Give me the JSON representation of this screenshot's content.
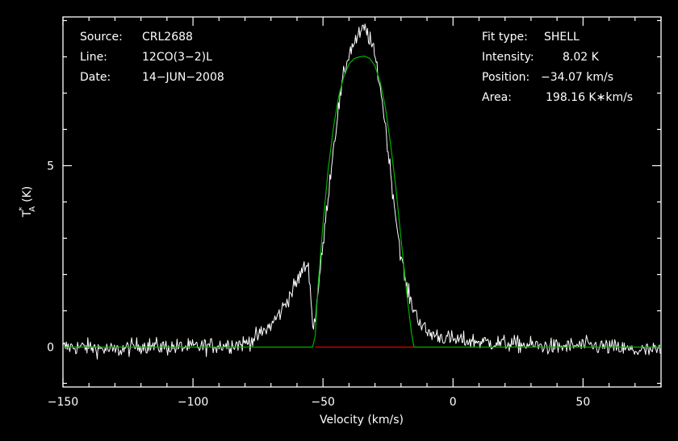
{
  "chart_data": {
    "type": "line",
    "xlabel": "Velocity (km/s)",
    "ylabel": "T",
    "ylabel_sub": "A",
    "ylabel_sup": "*",
    "ylabel_unit": "(K)",
    "xlim": [
      -150,
      80
    ],
    "ylim": [
      -1.1,
      9.1
    ],
    "x_ticks": [
      -150,
      -100,
      -50,
      0,
      50
    ],
    "y_ticks": [
      0,
      5
    ],
    "grid": false,
    "info_left": [
      {
        "key": "Source:",
        "value": "CRL2688"
      },
      {
        "key": "Line:",
        "value": "12CO(3−2)L"
      },
      {
        "key": "Date:",
        "value": "14−JUN−2008"
      }
    ],
    "info_right": [
      {
        "key": "Fit type:",
        "value": "SHELL"
      },
      {
        "key": "Intensity:",
        "value": "8.02 K"
      },
      {
        "key": "Position:",
        "value": "−34.07 km/s"
      },
      {
        "key": "Area:",
        "value": "198.16 K∗km/s"
      }
    ],
    "fit": {
      "type": "SHELL",
      "intensity_K": 8.02,
      "position_kms": -34.07,
      "area_Kkms": 198.16,
      "window_kms": [
        -53,
        -15
      ]
    },
    "series": [
      {
        "color": "#ffffff",
        "x": [
          -150,
          -140,
          -130,
          -120,
          -110,
          -100,
          -90,
          -80,
          -75,
          -70,
          -66,
          -63,
          -60,
          -58,
          -56,
          -55,
          -54,
          -53,
          -52,
          -50,
          -48,
          -46,
          -44,
          -42,
          -40,
          -38,
          -36,
          -34,
          -32,
          -30,
          -28,
          -26,
          -24,
          -22,
          -20,
          -18,
          -16,
          -14,
          -12,
          -10,
          -5,
          0,
          10,
          20,
          30,
          40,
          50,
          60,
          70,
          80
        ],
        "y": [
          0.0,
          0.0,
          -0.1,
          0.05,
          0.0,
          0.0,
          0.05,
          0.1,
          0.3,
          0.6,
          1.0,
          1.4,
          1.8,
          2.1,
          2.3,
          1.9,
          0.5,
          0.8,
          1.5,
          2.8,
          4.2,
          5.5,
          6.6,
          7.5,
          8.1,
          8.4,
          8.6,
          8.8,
          8.5,
          8.0,
          7.2,
          6.1,
          4.8,
          3.6,
          2.5,
          1.7,
          1.2,
          0.9,
          0.6,
          0.4,
          0.3,
          0.2,
          0.15,
          0.1,
          0.05,
          0.0,
          0.05,
          0.0,
          -0.1,
          -0.1
        ]
      },
      {
        "color": "#00b000",
        "x": [
          -150,
          -80,
          -54,
          -53,
          -52,
          -50,
          -48,
          -46,
          -44,
          -42,
          -40,
          -38,
          -36,
          -34,
          -32,
          -30,
          -28,
          -26,
          -24,
          -22,
          -20,
          -18,
          -16,
          -15,
          -14,
          0,
          80
        ],
        "y": [
          0,
          0,
          0,
          0.3,
          1.6,
          3.4,
          4.9,
          6.05,
          6.9,
          7.45,
          7.8,
          7.95,
          8.0,
          8.02,
          7.95,
          7.75,
          7.3,
          6.6,
          5.6,
          4.4,
          3.0,
          1.6,
          0.4,
          0,
          0,
          0,
          0
        ]
      },
      {
        "color": "#e00000",
        "x": [
          -53,
          -15
        ],
        "y": [
          0,
          0
        ]
      }
    ]
  }
}
